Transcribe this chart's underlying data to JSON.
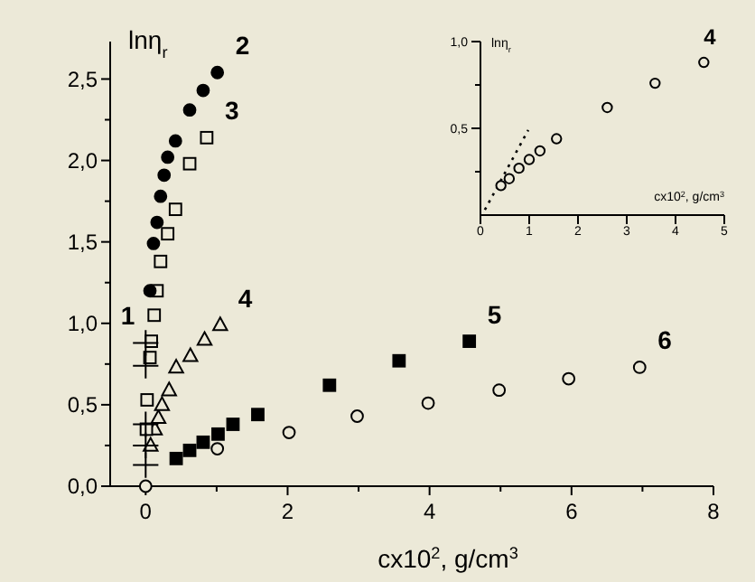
{
  "chart_data": [
    {
      "type": "scatter",
      "xlabel": "cx10$^{2}$, g/cm$^{3}$",
      "ylabel": "lnη$_{r}$",
      "xlim": [
        -0.5,
        8
      ],
      "ylim": [
        0,
        2.73
      ],
      "xticks": [
        0,
        {
          "value": 1,
          "label": null
        },
        2,
        {
          "value": 3,
          "label": null
        },
        4,
        {
          "value": 5,
          "label": null
        },
        6,
        {
          "value": 7,
          "label": null
        },
        8
      ],
      "yticks": [
        {
          "value": 0,
          "label": "0,0"
        },
        {
          "value": 0.25,
          "label": null
        },
        {
          "value": 0.5,
          "label": "0,5"
        },
        {
          "value": 0.75,
          "label": null
        },
        {
          "value": 1,
          "label": "1,0"
        },
        {
          "value": 1.25,
          "label": null
        },
        {
          "value": 1.5,
          "label": "1,5"
        },
        {
          "value": 1.75,
          "label": null
        },
        {
          "value": 2,
          "label": "2,0"
        },
        {
          "value": 2.25,
          "label": null
        },
        {
          "value": 2.5,
          "label": "2,5"
        }
      ],
      "grid": false,
      "legend": false,
      "series": [
        {
          "name": "1",
          "color": "#000000",
          "marker": "cross",
          "x": [
            0,
            0,
            0,
            0,
            0
          ],
          "values": [
            0.88,
            0.74,
            0.38,
            0.25,
            0.13
          ]
        },
        {
          "name": "2",
          "color": "#000000",
          "marker": "circle",
          "x": [
            0.06,
            0.11,
            0.16,
            0.21,
            0.26,
            0.31,
            0.42,
            0.62,
            0.81,
            1.01
          ],
          "values": [
            1.2,
            1.49,
            1.62,
            1.78,
            1.91,
            2.02,
            2.12,
            2.31,
            2.43,
            2.54
          ]
        },
        {
          "name": "3",
          "color": "#000000",
          "marker": "square",
          "x": [
            0.01,
            0.02,
            0.06,
            0.08,
            0.12,
            0.16,
            0.21,
            0.31,
            0.42,
            0.62,
            0.86
          ],
          "values": [
            0.35,
            0.53,
            0.79,
            0.89,
            1.05,
            1.2,
            1.38,
            1.55,
            1.7,
            1.98,
            2.14
          ]
        },
        {
          "name": "4",
          "color": "#000000",
          "marker": "triangle",
          "x": [
            0.07,
            0.13,
            0.18,
            0.23,
            0.33,
            0.43,
            0.63,
            0.83,
            1.05
          ],
          "values": [
            0.25,
            0.35,
            0.42,
            0.5,
            0.59,
            0.73,
            0.8,
            0.9,
            0.99
          ]
        },
        {
          "name": "5",
          "color": "#000000",
          "marker": "square",
          "x": [
            0.43,
            0.62,
            0.81,
            1.02,
            1.23,
            1.58,
            2.59,
            3.57,
            4.56
          ],
          "values": [
            0.17,
            0.22,
            0.27,
            0.32,
            0.38,
            0.44,
            0.62,
            0.77,
            0.89
          ]
        },
        {
          "name": "6",
          "color": "#000000",
          "marker": "circle",
          "x": [
            0,
            1.01,
            2.02,
            2.98,
            3.98,
            4.98,
            5.96,
            6.96
          ],
          "values": [
            0,
            0.23,
            0.33,
            0.43,
            0.51,
            0.59,
            0.66,
            0.73
          ]
        }
      ]
    },
    {
      "type": "scatter",
      "xlabel": "cx10$^{2}$, g/cm$^{3}$",
      "ylabel": "lnη$_{r}$",
      "xlim": [
        0,
        5
      ],
      "ylim": [
        0,
        1
      ],
      "xticks": [
        0,
        1,
        2,
        3,
        4,
        5
      ],
      "yticks": [
        {
          "value": 0.25,
          "label": null
        },
        {
          "value": 0.5,
          "label": "0,5"
        },
        {
          "value": 0.75,
          "label": null
        },
        {
          "value": 1,
          "label": "1,0"
        }
      ],
      "grid": false,
      "legend": false,
      "series": [
        {
          "name": "4",
          "color": "#000000",
          "marker": "circle",
          "x": [
            0.42,
            0.59,
            0.79,
            1.0,
            1.22,
            1.56,
            2.6,
            3.58,
            4.58
          ],
          "values": [
            0.17,
            0.21,
            0.27,
            0.32,
            0.37,
            0.44,
            0.62,
            0.76,
            0.88
          ]
        },
        {
          "type": "line",
          "color": "#000000",
          "line_style": "dotted",
          "marker": "none",
          "x": [
            0.09,
            0.98
          ],
          "values": [
            0.03,
            0.49
          ]
        }
      ]
    }
  ]
}
